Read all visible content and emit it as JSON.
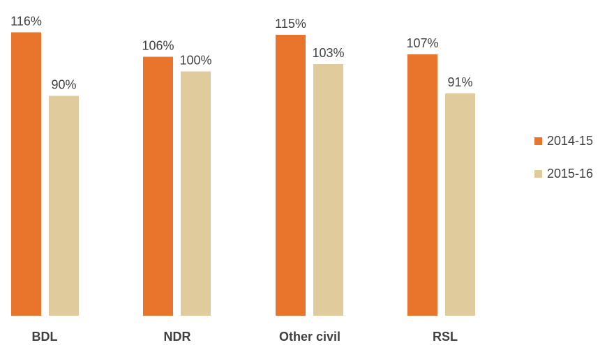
{
  "chart_data": {
    "type": "bar",
    "categories": [
      "BDL",
      "NDR",
      "Other civil",
      "RSL"
    ],
    "series": [
      {
        "name": "2014-15",
        "values": [
          116,
          106,
          115,
          107
        ],
        "labels": [
          "116%",
          "106%",
          "115%",
          "107%"
        ],
        "color": "#E9742B"
      },
      {
        "name": "2015-16",
        "values": [
          90,
          100,
          103,
          91
        ],
        "labels": [
          "90%",
          "100%",
          "103%",
          "91%"
        ],
        "color": "#E0CB9C"
      }
    ],
    "title": "",
    "xlabel": "",
    "ylabel": "",
    "ylim": [
      0,
      116
    ],
    "unit": "%",
    "grid": false,
    "legend_position": "right"
  }
}
